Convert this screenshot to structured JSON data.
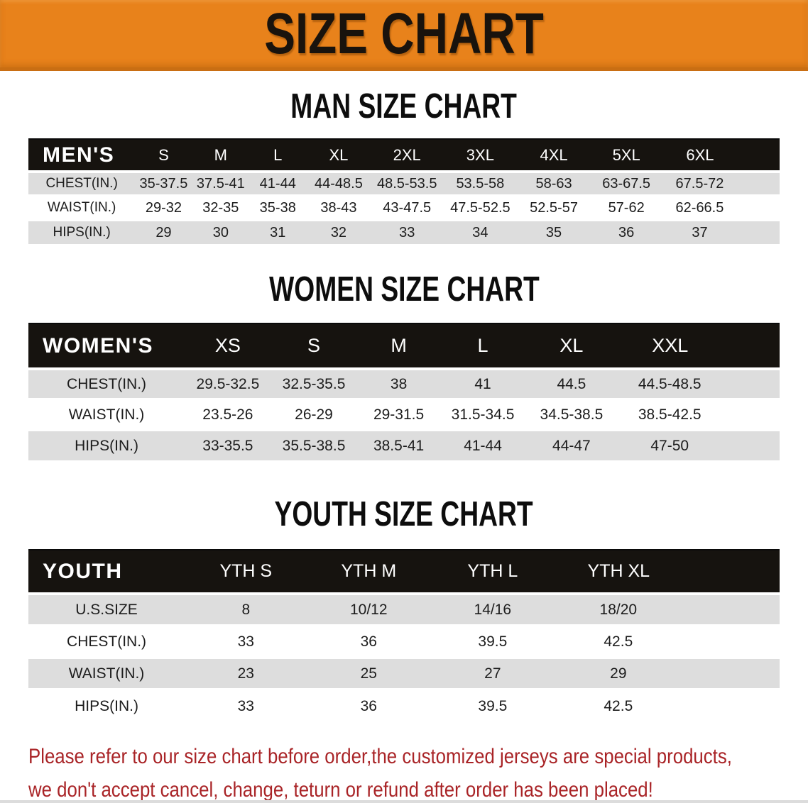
{
  "banner": {
    "title": "SIZE CHART",
    "bg_color": "#E8821B",
    "edge_color": "#C96E13",
    "text_color": "#19130d"
  },
  "colors": {
    "table_header_bg": "#16130f",
    "table_header_text": "#ffffff",
    "row_shade": "#dddddd",
    "row_plain": "#ffffff",
    "disclaimer_red": "#a92427"
  },
  "sections": [
    {
      "heading": "MAN SIZE CHART",
      "table": {
        "corner": "MEN'S",
        "columns": [
          "S",
          "M",
          "L",
          "XL",
          "2XL",
          "3XL",
          "4XL",
          "5XL",
          "6XL"
        ],
        "rows": [
          {
            "label": "CHEST(IN.)",
            "values": [
              "35-37.5",
              "37.5-41",
              "41-44",
              "44-48.5",
              "48.5-53.5",
              "53.5-58",
              "58-63",
              "63-67.5",
              "67.5-72"
            ]
          },
          {
            "label": "WAIST(IN.)",
            "values": [
              "29-32",
              "32-35",
              "35-38",
              "38-43",
              "43-47.5",
              "47.5-52.5",
              "52.5-57",
              "57-62",
              "62-66.5"
            ]
          },
          {
            "label": "HIPS(IN.)",
            "values": [
              "29",
              "30",
              "31",
              "32",
              "33",
              "34",
              "35",
              "36",
              "37"
            ]
          }
        ]
      }
    },
    {
      "heading": "WOMEN SIZE CHART",
      "table": {
        "corner": "WOMEN'S",
        "columns": [
          "XS",
          "S",
          "M",
          "L",
          "XL",
          "XXL"
        ],
        "rows": [
          {
            "label": "CHEST(IN.)",
            "values": [
              "29.5-32.5",
              "32.5-35.5",
              "38",
              "41",
              "44.5",
              "44.5-48.5"
            ]
          },
          {
            "label": "WAIST(IN.)",
            "values": [
              "23.5-26",
              "26-29",
              "29-31.5",
              "31.5-34.5",
              "34.5-38.5",
              "38.5-42.5"
            ]
          },
          {
            "label": "HIPS(IN.)",
            "values": [
              "33-35.5",
              "35.5-38.5",
              "38.5-41",
              "41-44",
              "44-47",
              "47-50"
            ]
          }
        ]
      }
    },
    {
      "heading": "YOUTH SIZE CHART",
      "table": {
        "corner": "YOUTH",
        "columns": [
          "YTH S",
          "YTH M",
          "YTH L",
          "YTH XL"
        ],
        "rows": [
          {
            "label": "U.S.SIZE",
            "values": [
              "8",
              "10/12",
              "14/16",
              "18/20"
            ]
          },
          {
            "label": "CHEST(IN.)",
            "values": [
              "33",
              "36",
              "39.5",
              "42.5"
            ]
          },
          {
            "label": "WAIST(IN.)",
            "values": [
              "23",
              "25",
              "27",
              "29"
            ]
          },
          {
            "label": "HIPS(IN.)",
            "values": [
              "33",
              "36",
              "39.5",
              "42.5"
            ]
          }
        ]
      }
    }
  ],
  "disclaimer": {
    "line1": "Please refer to our size chart before order,the customized jerseys are special products,",
    "line2": "we don't accept cancel, change, teturn or refund after order has been placed!"
  }
}
